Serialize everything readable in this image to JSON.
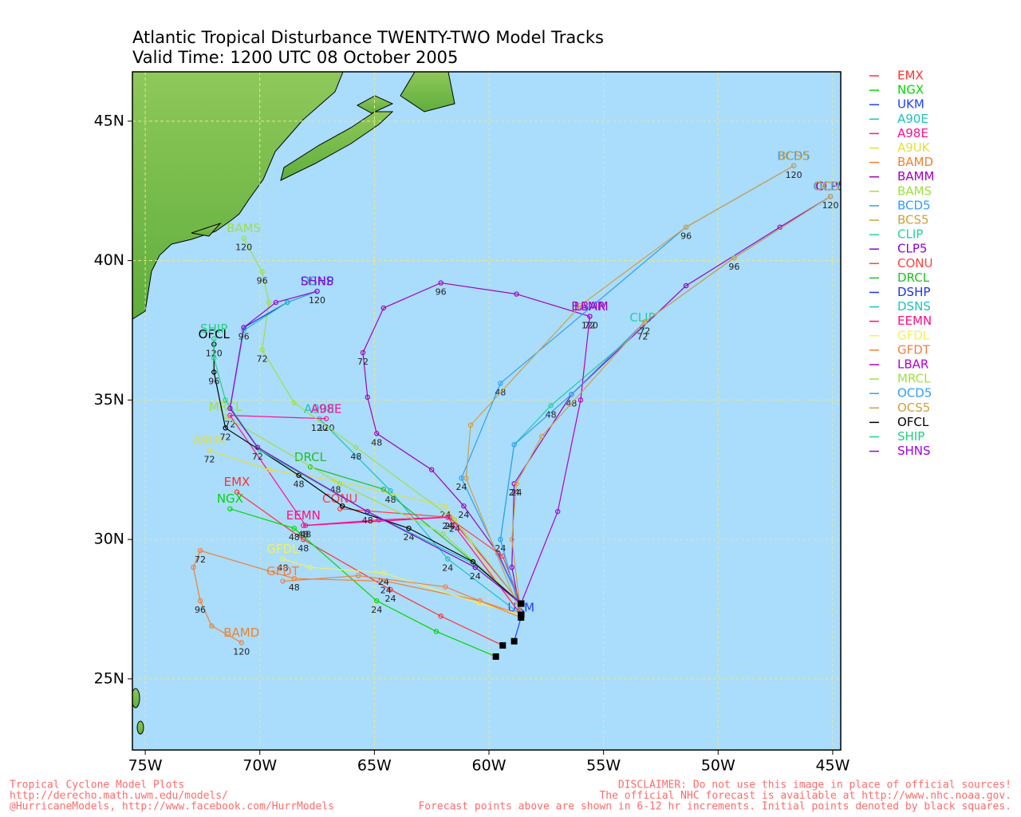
{
  "chart_data": {
    "type": "line",
    "title": "Atlantic Tropical Disturbance TWENTY-TWO Model Tracks",
    "subtitle": "Valid Time: 1200 UTC 08 October 2005",
    "xlim": [
      -75.56,
      -44.65
    ],
    "ylim": [
      22.45,
      46.77
    ],
    "xticks": [
      {
        "value": -75,
        "label": "75W"
      },
      {
        "value": -70,
        "label": "70W"
      },
      {
        "value": -65,
        "label": "65W"
      },
      {
        "value": -60,
        "label": "60W"
      },
      {
        "value": -55,
        "label": "55W"
      },
      {
        "value": -50,
        "label": "50W"
      },
      {
        "value": -45,
        "label": "45W"
      }
    ],
    "yticks": [
      {
        "value": 25,
        "label": "25N"
      },
      {
        "value": 30,
        "label": "30N"
      },
      {
        "value": 35,
        "label": "35N"
      },
      {
        "value": 40,
        "label": "40N"
      },
      {
        "value": 45,
        "label": "45N"
      }
    ],
    "grid": true,
    "series": [
      {
        "name": "EMX",
        "color": "#ff3030",
        "x": [
          -59.4,
          -62.1,
          -64.3,
          -68.1,
          -71.0
        ],
        "values": [
          26.2,
          27.25,
          28.2,
          30.0,
          31.7
        ],
        "hours": [
          null,
          null,
          24,
          48,
          null
        ]
      },
      {
        "name": "NGX",
        "color": "#00d800",
        "x": [
          -59.7,
          -62.3,
          -64.9,
          -68.5,
          -71.3
        ],
        "values": [
          25.8,
          26.7,
          27.8,
          30.4,
          31.1
        ],
        "hours": [
          null,
          null,
          24,
          48,
          null
        ]
      },
      {
        "name": "UKM",
        "color": "#2040ff",
        "x": [
          -58.9,
          -58.6
        ],
        "values": [
          26.35,
          27.2
        ]
      },
      {
        "name": "A90E",
        "color": "#20c0c0",
        "x": [
          -58.6,
          -61.8,
          -64.3,
          -67.4
        ],
        "values": [
          27.3,
          29.3,
          31.75,
          34.33
        ],
        "hours": [
          null,
          24,
          48,
          120
        ]
      },
      {
        "name": "A98E",
        "color": "#ff1090",
        "x": [
          -58.6,
          -61.7,
          -68.0,
          -71.3,
          -67.1
        ],
        "values": [
          27.7,
          30.8,
          30.5,
          34.45,
          34.33
        ],
        "hours": [
          null,
          24,
          48,
          72,
          120
        ]
      },
      {
        "name": "A9UK",
        "color": "#e0e040",
        "x": [
          -58.6,
          -61.9,
          -66.7,
          -69.6,
          -72.2
        ],
        "values": [
          27.3,
          31.2,
          32.1,
          32.5,
          33.2
        ],
        "hours": [
          null,
          24,
          48,
          null,
          72
        ]
      },
      {
        "name": "BAMD",
        "color": "#f08030",
        "x": [
          -58.6,
          -60.4,
          -64.5,
          -68.5,
          -72.6,
          -72.9,
          -72.6,
          -72.1,
          -70.8
        ],
        "values": [
          27.3,
          27.8,
          28.5,
          28.6,
          29.6,
          29.0,
          27.8,
          26.9,
          26.3
        ],
        "hours": [
          null,
          null,
          24,
          48,
          72,
          null,
          96,
          null,
          120
        ]
      },
      {
        "name": "BAMM",
        "color": "#a000c0",
        "x": [
          -58.6,
          -59.6,
          -61.1,
          -62.5,
          -64.9,
          -65.3,
          -65.5,
          -64.6,
          -62.1,
          -58.8,
          -55.6
        ],
        "values": [
          27.7,
          29.5,
          31.2,
          32.5,
          33.8,
          35.1,
          36.7,
          38.3,
          39.2,
          38.8,
          38.0
        ],
        "hours": [
          null,
          null,
          24,
          null,
          48,
          null,
          72,
          null,
          96,
          null,
          120
        ]
      },
      {
        "name": "BAMS",
        "color": "#a0e040",
        "x": [
          -58.6,
          -61.5,
          -65.8,
          -68.5,
          -69.9,
          -69.6,
          -69.9,
          -70.7
        ],
        "values": [
          27.7,
          30.7,
          33.3,
          34.9,
          36.8,
          38.5,
          39.6,
          40.8
        ],
        "hours": [
          null,
          24,
          48,
          null,
          72,
          null,
          96,
          120
        ]
      },
      {
        "name": "BCD5",
        "color": "#30a0f0",
        "x": [
          -58.6,
          -61.2,
          -59.5,
          -51.4,
          -46.7
        ],
        "values": [
          27.7,
          32.2,
          35.6,
          41.2,
          43.4
        ],
        "hours": [
          null,
          24,
          48,
          96,
          120
        ]
      },
      {
        "name": "BCS5",
        "color": "#d0a040",
        "x": [
          -58.6,
          -61.0,
          -60.8,
          -56.0,
          -51.4,
          -46.7
        ],
        "values": [
          27.3,
          32.2,
          34.1,
          38.4,
          41.2,
          43.4
        ]
      },
      {
        "name": "CLIP",
        "color": "#20d0a0",
        "x": [
          -58.6,
          -59.5,
          -58.9,
          -57.3,
          -53.3
        ],
        "values": [
          27.3,
          30.0,
          33.4,
          34.8,
          37.6
        ],
        "hours": [
          null,
          24,
          null,
          48,
          72
        ]
      },
      {
        "name": "CLP5",
        "color": "#9000d0",
        "x": [
          -58.6,
          -59.0,
          -58.9,
          -56.4,
          -51.4,
          -47.3,
          -45.1
        ],
        "values": [
          27.3,
          29.0,
          32.0,
          35.2,
          39.1,
          41.2,
          42.3
        ],
        "hours": [
          null,
          null,
          24,
          48,
          null,
          null,
          120
        ]
      },
      {
        "name": "CONU",
        "color": "#ff4040",
        "x": [
          -58.6,
          -59.4,
          -61.8,
          -66.5
        ],
        "values": [
          27.7,
          29.4,
          30.8,
          31.1
        ]
      },
      {
        "name": "DRCL",
        "color": "#20c020",
        "x": [
          -58.6,
          -60.7,
          -64.6,
          -67.8
        ],
        "values": [
          27.7,
          29.2,
          31.8,
          32.6
        ]
      },
      {
        "name": "DSHP",
        "color": "#2030e0",
        "x": [
          -58.6,
          -60.6,
          -65.3,
          -70.1,
          -71.3,
          -70.7,
          -68.8,
          -67.5
        ],
        "values": [
          27.7,
          29.0,
          31.0,
          33.3,
          34.7,
          37.6,
          38.5,
          38.9
        ]
      },
      {
        "name": "DSNS",
        "color": "#20c0c0",
        "x": [
          -58.6,
          -60.6,
          -65.3,
          -70.1,
          -71.3,
          -70.7,
          -68.8,
          -67.5
        ],
        "values": [
          27.7,
          29.1,
          31.0,
          33.3,
          34.7,
          37.5,
          38.5,
          38.9
        ]
      },
      {
        "name": "EEMN",
        "color": "#ff1080",
        "x": [
          -58.6,
          -61.8,
          -64.8,
          -68.1
        ],
        "values": [
          27.3,
          30.8,
          30.7,
          30.5
        ],
        "hours": [
          null,
          24,
          null,
          48
        ]
      },
      {
        "name": "GFDL",
        "color": "#f0f060",
        "x": [
          -58.6,
          -60.4,
          -64.6,
          -67.8,
          -69.0
        ],
        "values": [
          27.3,
          27.7,
          28.8,
          29.0,
          29.3
        ],
        "hours": [
          null,
          null,
          24,
          null,
          48
        ]
      },
      {
        "name": "GFDT",
        "color": "#f08040",
        "x": [
          -58.6,
          -61.9,
          -65.7,
          -69.0
        ],
        "values": [
          27.2,
          28.3,
          28.7,
          28.5
        ]
      },
      {
        "name": "LBAR",
        "color": "#b000d0",
        "x": [
          -58.6,
          -57.0,
          -56.0,
          -55.6
        ],
        "values": [
          27.7,
          31.0,
          35.0,
          38.0
        ],
        "hours": [
          null,
          null,
          null,
          72
        ]
      },
      {
        "name": "MRCL",
        "color": "#a0e040",
        "x": [
          -58.6,
          -62.0,
          -66.5,
          -71.5
        ],
        "values": [
          27.7,
          30.2,
          32.0,
          34.4
        ]
      },
      {
        "name": "OCD5",
        "color": "#30a0f0",
        "x": [
          -58.6,
          -59.5,
          -58.9,
          -56.4,
          -53.2,
          -49.3,
          -45.1
        ],
        "values": [
          27.3,
          30.0,
          33.4,
          35.2,
          37.8,
          40.1,
          42.3
        ]
      },
      {
        "name": "OCS5",
        "color": "#d0a040",
        "x": [
          -58.6,
          -59.0,
          -58.8,
          -57.7,
          -53.2,
          -49.3,
          -45.1
        ],
        "values": [
          27.3,
          30.0,
          32.0,
          33.7,
          37.8,
          40.1,
          42.3
        ],
        "hours": [
          null,
          null,
          24,
          null,
          72,
          96,
          null
        ]
      },
      {
        "name": "OFCL",
        "color": "#000000",
        "x": [
          -58.6,
          -60.7,
          -63.5,
          -66.4,
          -68.3,
          -71.5,
          -72.0,
          -72.0
        ],
        "values": [
          27.7,
          29.2,
          30.4,
          31.2,
          32.3,
          34.0,
          36.0,
          37.0
        ],
        "hours": [
          null,
          null,
          24,
          null,
          48,
          72,
          96,
          120
        ]
      },
      {
        "name": "SHIP",
        "color": "#20d080",
        "x": [
          -58.6,
          -60.6,
          -65.3,
          -70.0,
          -71.5,
          -72.0,
          -72.0
        ],
        "values": [
          27.7,
          29.0,
          31.0,
          33.2,
          35.0,
          36.5,
          37.2
        ]
      },
      {
        "name": "SHNS",
        "color": "#a000e0",
        "x": [
          -58.6,
          -60.6,
          -65.3,
          -70.1,
          -71.3,
          -70.7,
          -69.3,
          -67.5
        ],
        "values": [
          27.7,
          29.0,
          31.0,
          33.3,
          34.7,
          37.6,
          38.5,
          38.9
        ],
        "hours": [
          null,
          24,
          48,
          72,
          null,
          96,
          null,
          120
        ]
      }
    ],
    "footer_left": [
      "Tropical Cyclone Model Plots",
      "http://derecho.math.uwm.edu/models/",
      "@HurricaneModels, http://www.facebook.com/HurrModels"
    ],
    "footer_right": [
      "DISCLAIMER: Do not use this image in place of official sources!",
      "The official NHC forecast is available at http://www.nhc.noaa.gov.",
      "Forecast points above are shown in 6-12 hr increments. Initial points denoted by black squares."
    ]
  }
}
